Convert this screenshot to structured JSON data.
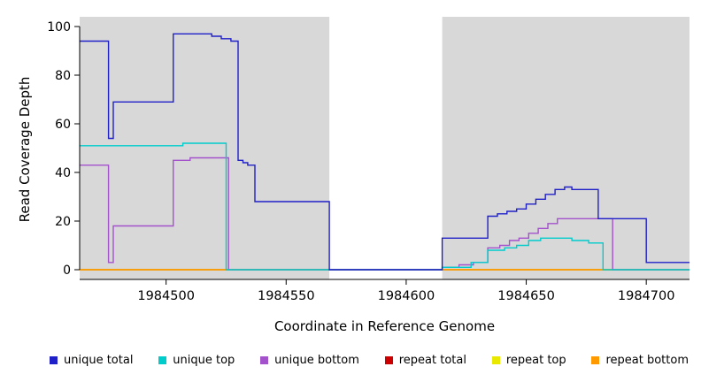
{
  "chart_data": {
    "type": "line",
    "subtype": "step-coverage",
    "title": "",
    "xlabel": "Coordinate in Reference Genome",
    "ylabel": "Read Coverage Depth",
    "x_range": [
      1984464,
      1984718
    ],
    "y_range": [
      0,
      100
    ],
    "x_ticks": [
      1984500,
      1984550,
      1984600,
      1984650,
      1984700
    ],
    "y_ticks": [
      0,
      20,
      40,
      60,
      80,
      100
    ],
    "plot_bg": "#d8d8d8",
    "gap_region": [
      1984568,
      1984615
    ],
    "grid": false,
    "legend_position": "bottom",
    "series": [
      {
        "name": "repeat total",
        "color": "#cc0000",
        "steps": [
          [
            1984464,
            0
          ]
        ]
      },
      {
        "name": "repeat top",
        "color": "#e8e800",
        "steps": [
          [
            1984464,
            0
          ]
        ]
      },
      {
        "name": "repeat bottom",
        "color": "#ff9900",
        "steps": [
          [
            1984464,
            0
          ]
        ]
      },
      {
        "name": "unique bottom",
        "color": "#a352cc",
        "steps": [
          [
            1984464,
            43
          ],
          [
            1984476,
            3
          ],
          [
            1984478,
            18
          ],
          [
            1984503,
            45
          ],
          [
            1984510,
            46
          ],
          [
            1984526,
            0
          ],
          [
            1984615,
            1
          ],
          [
            1984622,
            2
          ],
          [
            1984628,
            3
          ],
          [
            1984634,
            9
          ],
          [
            1984639,
            10
          ],
          [
            1984643,
            12
          ],
          [
            1984647,
            13
          ],
          [
            1984651,
            15
          ],
          [
            1984655,
            17
          ],
          [
            1984659,
            19
          ],
          [
            1984663,
            21
          ],
          [
            1984686,
            0
          ]
        ]
      },
      {
        "name": "unique top",
        "color": "#00cccc",
        "steps": [
          [
            1984464,
            51
          ],
          [
            1984507,
            52
          ],
          [
            1984525,
            0
          ],
          [
            1984615,
            1
          ],
          [
            1984627,
            3
          ],
          [
            1984634,
            8
          ],
          [
            1984641,
            9
          ],
          [
            1984646,
            10
          ],
          [
            1984651,
            12
          ],
          [
            1984656,
            13
          ],
          [
            1984669,
            12
          ],
          [
            1984676,
            11
          ],
          [
            1984682,
            0
          ]
        ]
      },
      {
        "name": "unique total",
        "color": "#2020c8",
        "steps": [
          [
            1984464,
            94
          ],
          [
            1984476,
            54
          ],
          [
            1984478,
            69
          ],
          [
            1984503,
            97
          ],
          [
            1984519,
            96
          ],
          [
            1984523,
            95
          ],
          [
            1984527,
            94
          ],
          [
            1984530,
            45
          ],
          [
            1984532,
            44
          ],
          [
            1984534,
            43
          ],
          [
            1984537,
            28
          ],
          [
            1984568,
            0
          ],
          [
            1984615,
            13
          ],
          [
            1984634,
            22
          ],
          [
            1984638,
            23
          ],
          [
            1984642,
            24
          ],
          [
            1984646,
            25
          ],
          [
            1984650,
            27
          ],
          [
            1984654,
            29
          ],
          [
            1984658,
            31
          ],
          [
            1984662,
            33
          ],
          [
            1984666,
            34
          ],
          [
            1984669,
            33
          ],
          [
            1984680,
            21
          ],
          [
            1984700,
            3
          ]
        ]
      }
    ],
    "legend": [
      {
        "label": "unique total",
        "color": "#2020c8"
      },
      {
        "label": "unique top",
        "color": "#00cccc"
      },
      {
        "label": "unique bottom",
        "color": "#a352cc"
      },
      {
        "label": "repeat total",
        "color": "#cc0000"
      },
      {
        "label": "repeat top",
        "color": "#e8e800"
      },
      {
        "label": "repeat bottom",
        "color": "#ff9900"
      }
    ]
  }
}
